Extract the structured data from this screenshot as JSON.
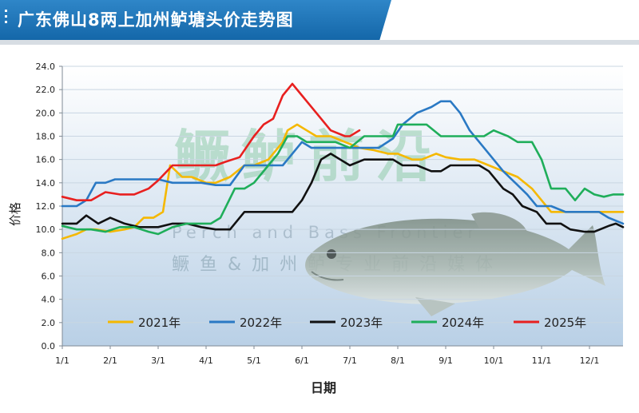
{
  "header": {
    "title": "广东佛山8两上加州鲈塘头价走势图"
  },
  "watermark": {
    "main": "鳜鲈前沿",
    "english": "Perch and Bass Frontier",
    "sub": "鳜 鱼 & 加 州 鲈 专 业 前 沿 媒 体"
  },
  "chart_data": {
    "type": "line",
    "xlabel": "日期",
    "ylabel": "价格",
    "ylim": [
      0,
      24
    ],
    "yticks": [
      "0.0",
      "2.0",
      "4.0",
      "6.0",
      "8.0",
      "10.0",
      "12.0",
      "14.0",
      "16.0",
      "18.0",
      "20.0",
      "22.0",
      "24.0"
    ],
    "x_range_months": [
      1,
      12.7
    ],
    "xticks": [
      {
        "label": "1/1",
        "m": 1
      },
      {
        "label": "2/1",
        "m": 2
      },
      {
        "label": "3/1",
        "m": 3
      },
      {
        "label": "4/1",
        "m": 4
      },
      {
        "label": "5/1",
        "m": 5
      },
      {
        "label": "6/1",
        "m": 6
      },
      {
        "label": "7/1",
        "m": 7
      },
      {
        "label": "8/1",
        "m": 8
      },
      {
        "label": "9/1",
        "m": 9
      },
      {
        "label": "10/1",
        "m": 10
      },
      {
        "label": "11/1",
        "m": 11
      },
      {
        "label": "12/1",
        "m": 12
      }
    ],
    "legend_position": "bottom",
    "series": [
      {
        "name": "2021年",
        "color": "#f5b800",
        "points": [
          [
            1.0,
            9.2
          ],
          [
            1.3,
            9.6
          ],
          [
            1.5,
            10.0
          ],
          [
            1.7,
            10.0
          ],
          [
            2.0,
            9.8
          ],
          [
            2.3,
            10.0
          ],
          [
            2.5,
            10.2
          ],
          [
            2.7,
            11.0
          ],
          [
            2.9,
            11.0
          ],
          [
            3.1,
            11.5
          ],
          [
            3.25,
            15.5
          ],
          [
            3.5,
            14.5
          ],
          [
            3.7,
            14.5
          ],
          [
            4.0,
            14.0
          ],
          [
            4.2,
            14.0
          ],
          [
            4.5,
            14.5
          ],
          [
            4.8,
            15.5
          ],
          [
            5.0,
            15.5
          ],
          [
            5.3,
            16.0
          ],
          [
            5.6,
            17.5
          ],
          [
            5.7,
            18.5
          ],
          [
            5.9,
            19.0
          ],
          [
            6.1,
            18.5
          ],
          [
            6.3,
            18.0
          ],
          [
            6.6,
            18.0
          ],
          [
            6.9,
            17.5
          ],
          [
            7.2,
            17.0
          ],
          [
            7.5,
            16.8
          ],
          [
            7.8,
            16.5
          ],
          [
            8.0,
            16.5
          ],
          [
            8.3,
            16.0
          ],
          [
            8.5,
            16.0
          ],
          [
            8.8,
            16.5
          ],
          [
            9.0,
            16.2
          ],
          [
            9.3,
            16.0
          ],
          [
            9.6,
            16.0
          ],
          [
            9.9,
            15.5
          ],
          [
            10.2,
            15.0
          ],
          [
            10.5,
            14.5
          ],
          [
            10.8,
            13.5
          ],
          [
            11.0,
            12.5
          ],
          [
            11.2,
            11.5
          ],
          [
            11.5,
            11.5
          ],
          [
            11.8,
            11.5
          ],
          [
            12.0,
            11.5
          ],
          [
            12.3,
            11.5
          ],
          [
            12.7,
            11.5
          ]
        ]
      },
      {
        "name": "2022年",
        "color": "#2a79c4",
        "points": [
          [
            1.0,
            12.0
          ],
          [
            1.3,
            12.0
          ],
          [
            1.5,
            12.5
          ],
          [
            1.7,
            14.0
          ],
          [
            1.9,
            14.0
          ],
          [
            2.1,
            14.3
          ],
          [
            2.4,
            14.3
          ],
          [
            2.7,
            14.3
          ],
          [
            3.0,
            14.3
          ],
          [
            3.3,
            14.0
          ],
          [
            3.6,
            14.0
          ],
          [
            3.9,
            14.0
          ],
          [
            4.2,
            13.8
          ],
          [
            4.5,
            13.8
          ],
          [
            4.8,
            15.5
          ],
          [
            5.0,
            15.5
          ],
          [
            5.3,
            15.5
          ],
          [
            5.6,
            15.5
          ],
          [
            5.8,
            16.5
          ],
          [
            6.0,
            17.5
          ],
          [
            6.2,
            17.0
          ],
          [
            6.5,
            17.0
          ],
          [
            6.8,
            17.0
          ],
          [
            7.0,
            17.0
          ],
          [
            7.3,
            17.0
          ],
          [
            7.6,
            17.0
          ],
          [
            7.9,
            17.8
          ],
          [
            8.1,
            19.0
          ],
          [
            8.4,
            20.0
          ],
          [
            8.7,
            20.5
          ],
          [
            8.9,
            21.0
          ],
          [
            9.1,
            21.0
          ],
          [
            9.3,
            20.0
          ],
          [
            9.5,
            18.5
          ],
          [
            9.8,
            17.0
          ],
          [
            10.0,
            16.0
          ],
          [
            10.2,
            15.0
          ],
          [
            10.5,
            13.8
          ],
          [
            10.7,
            13.0
          ],
          [
            10.9,
            12.0
          ],
          [
            11.2,
            12.0
          ],
          [
            11.5,
            11.5
          ],
          [
            11.8,
            11.5
          ],
          [
            12.0,
            11.5
          ],
          [
            12.2,
            11.5
          ],
          [
            12.4,
            11.0
          ],
          [
            12.7,
            10.5
          ]
        ]
      },
      {
        "name": "2023年",
        "color": "#111111",
        "points": [
          [
            1.0,
            10.5
          ],
          [
            1.3,
            10.5
          ],
          [
            1.5,
            11.2
          ],
          [
            1.75,
            10.5
          ],
          [
            2.0,
            11.0
          ],
          [
            2.3,
            10.5
          ],
          [
            2.6,
            10.2
          ],
          [
            3.0,
            10.2
          ],
          [
            3.3,
            10.5
          ],
          [
            3.6,
            10.5
          ],
          [
            3.9,
            10.2
          ],
          [
            4.2,
            10.0
          ],
          [
            4.5,
            10.0
          ],
          [
            4.8,
            11.5
          ],
          [
            5.0,
            11.5
          ],
          [
            5.3,
            11.5
          ],
          [
            5.6,
            11.5
          ],
          [
            5.8,
            11.5
          ],
          [
            6.0,
            12.5
          ],
          [
            6.2,
            14.0
          ],
          [
            6.4,
            16.0
          ],
          [
            6.6,
            16.5
          ],
          [
            6.8,
            16.0
          ],
          [
            7.0,
            15.5
          ],
          [
            7.3,
            16.0
          ],
          [
            7.6,
            16.0
          ],
          [
            7.9,
            16.0
          ],
          [
            8.1,
            15.5
          ],
          [
            8.4,
            15.5
          ],
          [
            8.7,
            15.0
          ],
          [
            8.9,
            15.0
          ],
          [
            9.1,
            15.5
          ],
          [
            9.4,
            15.5
          ],
          [
            9.7,
            15.5
          ],
          [
            9.9,
            15.0
          ],
          [
            10.2,
            13.5
          ],
          [
            10.4,
            13.0
          ],
          [
            10.6,
            12.0
          ],
          [
            10.9,
            11.5
          ],
          [
            11.1,
            10.5
          ],
          [
            11.4,
            10.5
          ],
          [
            11.6,
            10.0
          ],
          [
            11.9,
            9.8
          ],
          [
            12.1,
            9.8
          ],
          [
            12.4,
            10.3
          ],
          [
            12.55,
            10.5
          ],
          [
            12.7,
            10.2
          ]
        ]
      },
      {
        "name": "2024年",
        "color": "#1fae5a",
        "points": [
          [
            1.0,
            10.3
          ],
          [
            1.3,
            10.0
          ],
          [
            1.6,
            10.0
          ],
          [
            1.9,
            9.8
          ],
          [
            2.2,
            10.2
          ],
          [
            2.5,
            10.2
          ],
          [
            2.8,
            9.8
          ],
          [
            3.0,
            9.6
          ],
          [
            3.3,
            10.2
          ],
          [
            3.6,
            10.5
          ],
          [
            3.9,
            10.5
          ],
          [
            4.1,
            10.5
          ],
          [
            4.3,
            11.0
          ],
          [
            4.6,
            13.5
          ],
          [
            4.8,
            13.5
          ],
          [
            5.0,
            14.0
          ],
          [
            5.3,
            15.5
          ],
          [
            5.5,
            16.5
          ],
          [
            5.7,
            18.0
          ],
          [
            5.9,
            18.0
          ],
          [
            6.1,
            17.5
          ],
          [
            6.4,
            17.5
          ],
          [
            6.7,
            17.5
          ],
          [
            7.0,
            17.0
          ],
          [
            7.3,
            18.0
          ],
          [
            7.6,
            18.0
          ],
          [
            7.9,
            18.0
          ],
          [
            8.0,
            19.0
          ],
          [
            8.3,
            19.0
          ],
          [
            8.6,
            19.0
          ],
          [
            8.9,
            18.0
          ],
          [
            9.2,
            18.0
          ],
          [
            9.5,
            18.0
          ],
          [
            9.8,
            18.0
          ],
          [
            10.0,
            18.5
          ],
          [
            10.3,
            18.0
          ],
          [
            10.5,
            17.5
          ],
          [
            10.8,
            17.5
          ],
          [
            11.0,
            16.0
          ],
          [
            11.2,
            13.5
          ],
          [
            11.5,
            13.5
          ],
          [
            11.7,
            12.5
          ],
          [
            11.9,
            13.5
          ],
          [
            12.1,
            13.0
          ],
          [
            12.3,
            12.8
          ],
          [
            12.5,
            13.0
          ],
          [
            12.7,
            13.0
          ]
        ]
      },
      {
        "name": "2025年",
        "color": "#e8201f",
        "points": [
          [
            1.0,
            12.8
          ],
          [
            1.3,
            12.5
          ],
          [
            1.6,
            12.5
          ],
          [
            1.9,
            13.2
          ],
          [
            2.2,
            13.0
          ],
          [
            2.5,
            13.0
          ],
          [
            2.8,
            13.5
          ],
          [
            3.0,
            14.2
          ],
          [
            3.3,
            15.5
          ],
          [
            3.6,
            15.5
          ],
          [
            3.9,
            15.5
          ],
          [
            4.2,
            15.5
          ],
          [
            4.4,
            15.8
          ],
          [
            4.7,
            16.2
          ],
          [
            5.0,
            18.0
          ],
          [
            5.2,
            19.0
          ],
          [
            5.4,
            19.5
          ],
          [
            5.6,
            21.5
          ],
          [
            5.8,
            22.5
          ],
          [
            6.0,
            21.5
          ],
          [
            6.3,
            20.0
          ],
          [
            6.6,
            18.5
          ],
          [
            6.9,
            18.0
          ],
          [
            7.0,
            18.0
          ],
          [
            7.2,
            18.5
          ]
        ]
      }
    ]
  }
}
